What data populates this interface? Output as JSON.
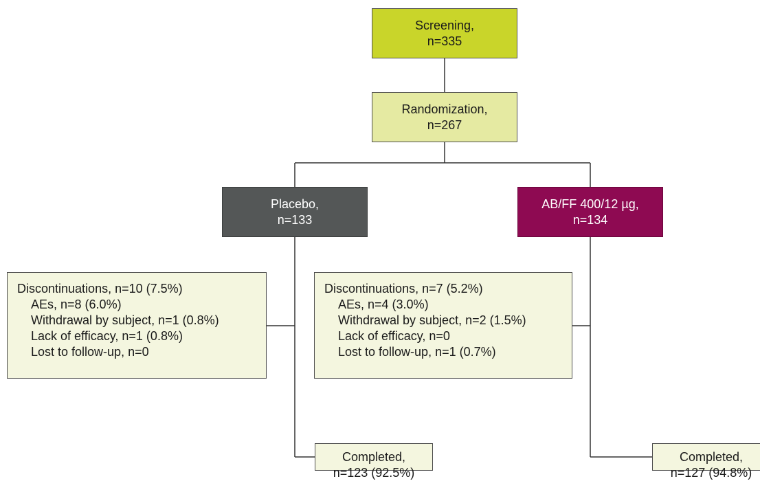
{
  "screening": {
    "label": "Screening,",
    "count": "n=335"
  },
  "randomization": {
    "label": "Randomization,",
    "count": "n=267"
  },
  "placebo_arm": {
    "label": "Placebo,",
    "count": "n=133"
  },
  "abff_arm": {
    "label": "AB/FF 400/12 µg,",
    "count": "n=134"
  },
  "placebo_discontinuations": {
    "heading": "Discontinuations, n=10 (7.5%)",
    "reasons": [
      "AEs, n=8 (6.0%)",
      "Withdrawal by subject, n=1 (0.8%)",
      "Lack of efficacy, n=1 (0.8%)",
      "Lost to follow-up, n=0"
    ]
  },
  "abff_discontinuations": {
    "heading": "Discontinuations, n=7 (5.2%)",
    "reasons": [
      "AEs, n=4 (3.0%)",
      "Withdrawal by subject, n=2 (1.5%)",
      "Lack of efficacy, n=0",
      "Lost to follow-up, n=1 (0.7%)"
    ]
  },
  "placebo_completed": {
    "label": "Completed,",
    "count": "n=123 (92.5%)"
  },
  "abff_completed": {
    "label": "Completed,",
    "count": "n=127 (94.8%)"
  },
  "colors": {
    "screening": "#c9d52a",
    "randomization": "#e5eaa2",
    "placebo": "#545757",
    "abff": "#8e0a52",
    "info_box": "#f4f6df",
    "line": "#333333"
  }
}
